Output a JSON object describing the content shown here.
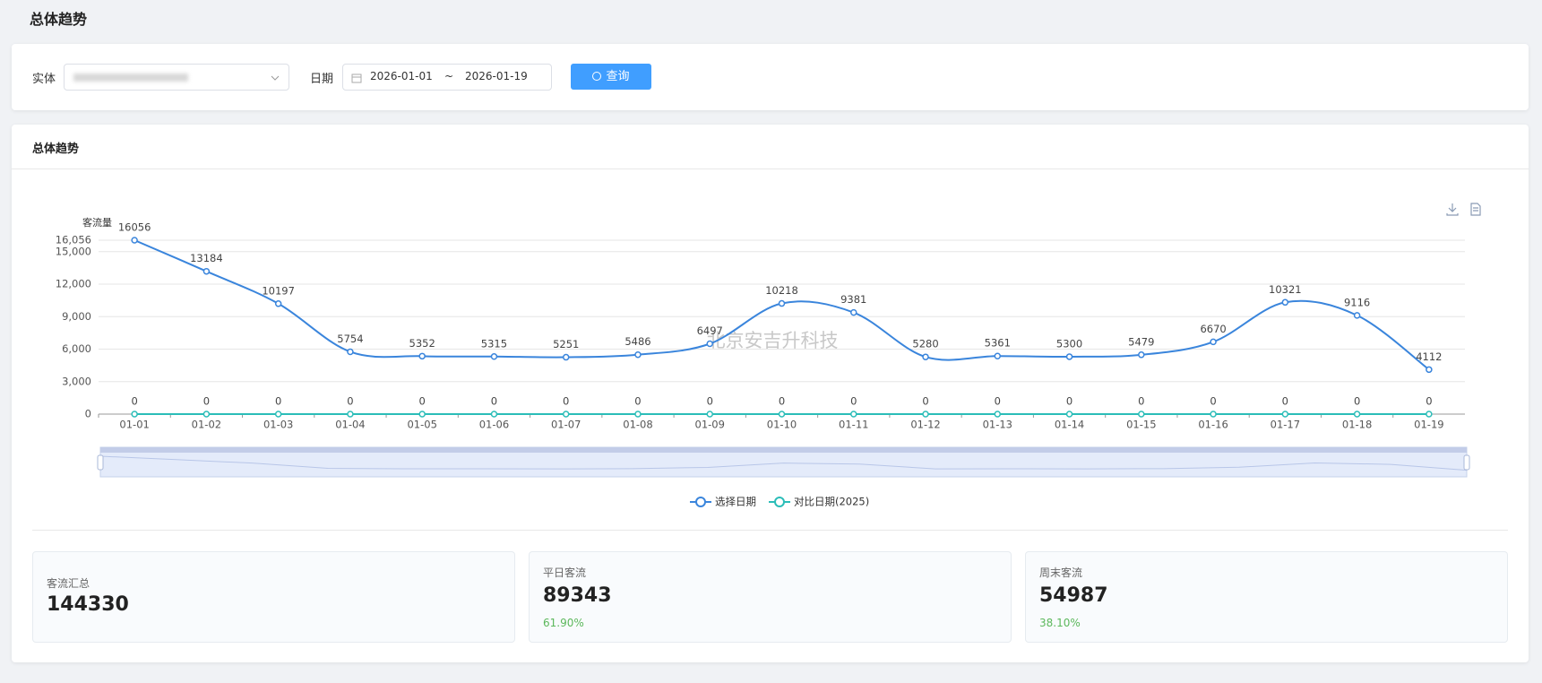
{
  "header": {
    "title": "总体趋势"
  },
  "filter": {
    "entity_label": "实体",
    "date_label": "日期",
    "start_date": "2026-01-01",
    "separator": "~",
    "end_date": "2026-01-19",
    "button": "查询"
  },
  "panel": {
    "title": "总体趋势",
    "watermark": "北京安吉升科技"
  },
  "chart_data": {
    "type": "line",
    "y_label": "客流量",
    "categories": [
      "01-01",
      "01-02",
      "01-03",
      "01-04",
      "01-05",
      "01-06",
      "01-07",
      "01-08",
      "01-09",
      "01-10",
      "01-11",
      "01-12",
      "01-13",
      "01-14",
      "01-15",
      "01-16",
      "01-17",
      "01-18",
      "01-19"
    ],
    "series": [
      {
        "name": "选择日期",
        "color": "#3a85dc",
        "values": [
          16056,
          13184,
          10197,
          5754,
          5352,
          5315,
          5251,
          5486,
          6497,
          10218,
          9381,
          5280,
          5361,
          5300,
          5479,
          6670,
          10321,
          9116,
          4112
        ]
      },
      {
        "name": "对比日期(2025)",
        "color": "#2bbdb8",
        "values": [
          0,
          0,
          0,
          0,
          0,
          0,
          0,
          0,
          0,
          0,
          0,
          0,
          0,
          0,
          0,
          0,
          0,
          0,
          0
        ]
      }
    ],
    "ylim": [
      0,
      16056
    ],
    "yticks": [
      0,
      {
        "value": 3000,
        "label": "3,000"
      },
      {
        "value": 6000,
        "label": "6,000"
      },
      {
        "value": 9000,
        "label": "9,000"
      },
      {
        "value": 12000,
        "label": "12,000"
      },
      {
        "value": 15000,
        "label": "15,000"
      },
      {
        "value": 16056,
        "label": "16,056"
      }
    ],
    "grid": true,
    "legend": "bottom"
  },
  "stats": [
    {
      "label": "客流汇总",
      "value": 144330
    },
    {
      "label": "平日客流",
      "value": 89343,
      "share": "61.90%"
    },
    {
      "label": "周末客流",
      "value": 54987,
      "share": "38.10%"
    }
  ]
}
